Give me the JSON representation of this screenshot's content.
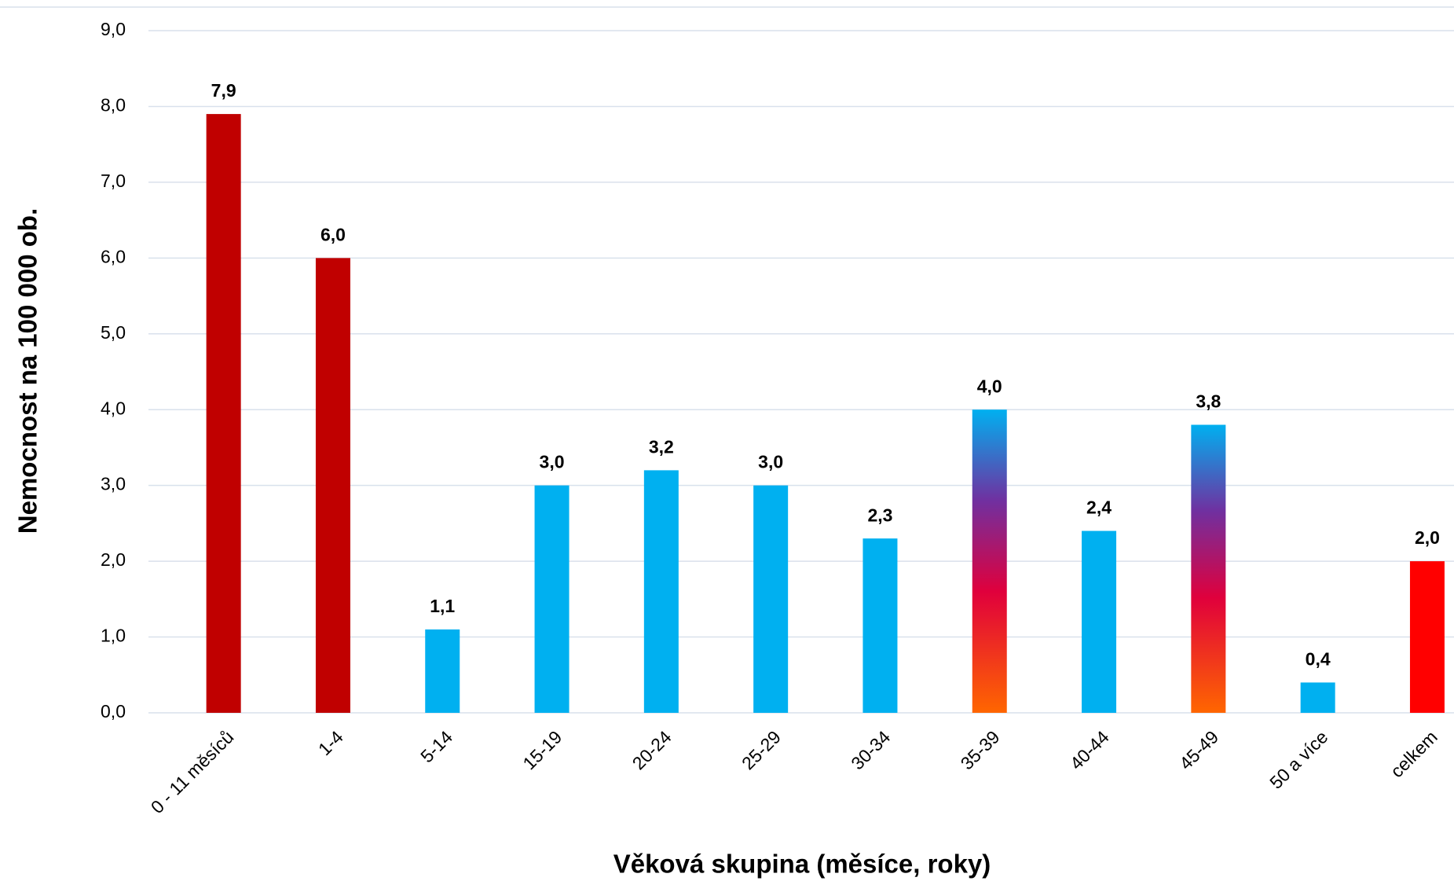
{
  "chart_data": {
    "type": "bar",
    "x_label": "Věková skupina (měsíce, roky)",
    "y_label": "Nemocnost na 100 000 ob.",
    "categories": [
      "0 - 11 měsíců",
      "1-4",
      "5-14",
      "15-19",
      "20-24",
      "25-29",
      "30-34",
      "35-39",
      "40-44",
      "45-49",
      "50 a více",
      "celkem"
    ],
    "values": [
      7.9,
      6.0,
      1.1,
      3.0,
      3.2,
      3.0,
      2.3,
      4.0,
      2.4,
      3.8,
      0.4,
      2.0
    ],
    "value_labels": [
      "7,9",
      "6,0",
      "1,1",
      "3,0",
      "3,2",
      "3,0",
      "2,3",
      "4,0",
      "2,4",
      "3,8",
      "0,4",
      "2,0"
    ],
    "colors": [
      "#c00000",
      "#c00000",
      "#00b0f0",
      "#00b0f0",
      "#00b0f0",
      "#00b0f0",
      "#00b0f0",
      [
        "#00b0f0",
        "#7030a0",
        "#e0003c",
        "#ff6600"
      ],
      "#00b0f0",
      [
        "#00b0f0",
        "#7030a0",
        "#e0003c",
        "#ff6600"
      ],
      "#00b0f0",
      "#ff0000"
    ],
    "ylim": [
      0,
      9
    ],
    "yticks": [
      {
        "value": 0,
        "label": "0,0"
      },
      {
        "value": 1,
        "label": "1,0"
      },
      {
        "value": 2,
        "label": "2,0"
      },
      {
        "value": 3,
        "label": "3,0"
      },
      {
        "value": 4,
        "label": "4,0"
      },
      {
        "value": 5,
        "label": "5,0"
      },
      {
        "value": 6,
        "label": "6,0"
      },
      {
        "value": 7,
        "label": "7,0"
      },
      {
        "value": 8,
        "label": "8,0"
      },
      {
        "value": 9,
        "label": "9,0"
      }
    ],
    "grid": true
  }
}
